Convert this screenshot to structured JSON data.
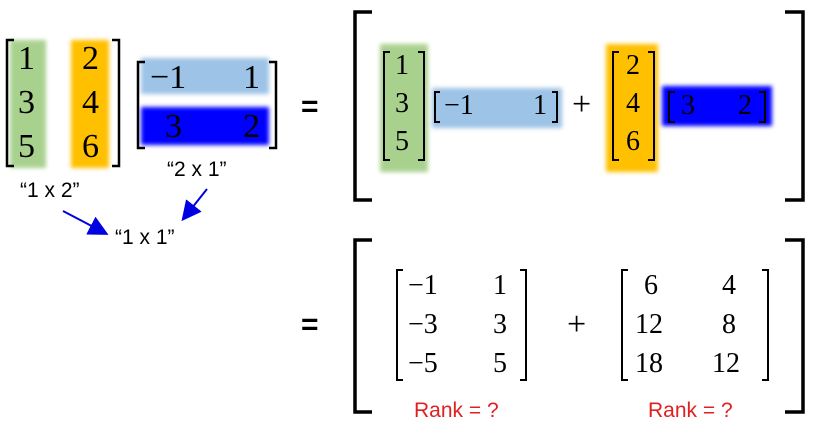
{
  "colors": {
    "green": "#a9d18e",
    "orange": "#ffc000",
    "light_blue": "#9dc3e6",
    "dark_blue": "#0000ff",
    "arrow": "#0000e0",
    "rank_text": "#e02020"
  },
  "left_product": {
    "matrix_a": {
      "col1": [
        "1",
        "3",
        "5"
      ],
      "col2": [
        "2",
        "4",
        "6"
      ]
    },
    "matrix_b": {
      "row1": [
        "−1",
        "1"
      ],
      "row2": [
        "3",
        "2"
      ]
    },
    "label_a": "“1 x 2”",
    "label_b": "“2 x 1”",
    "label_result": "“1 x 1”"
  },
  "equals_1": "=",
  "equals_2": "=",
  "outer_product_sum": {
    "term1_col": [
      "1",
      "3",
      "5"
    ],
    "term1_row": [
      "−1",
      "1"
    ],
    "plus": "+",
    "term2_col": [
      "2",
      "4",
      "6"
    ],
    "term2_row": [
      "3",
      "2"
    ]
  },
  "result_sum": {
    "matrix1": {
      "col1": [
        "−1",
        "−3",
        "−5"
      ],
      "col2": [
        "1",
        "3",
        "5"
      ]
    },
    "plus": "+",
    "matrix2": {
      "col1": [
        "6",
        "12",
        "18"
      ],
      "col2": [
        "4",
        "8",
        "12"
      ]
    },
    "rank_label_1": "Rank = ?",
    "rank_label_2": "Rank = ?"
  }
}
